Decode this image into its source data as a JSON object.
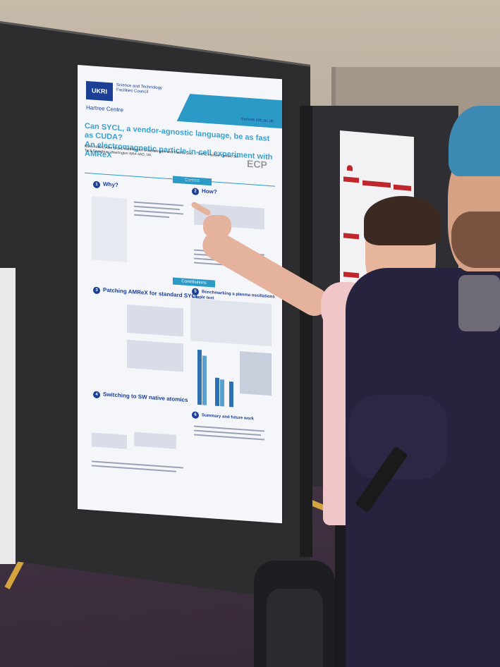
{
  "scene": {
    "description_colors": {
      "poster_accent": "#2b9ac7",
      "poster_navy": "#1b3f95",
      "board": "#2d2d30",
      "carpet": "#3e3040",
      "carpet_stripe": "#d4a43e",
      "shirt_pink": "#f1c6c8",
      "cap_blue": "#3c8ab3"
    }
  },
  "poster": {
    "logo": "UKRI",
    "org_line": "Science and Technology Facilities Council",
    "centre": "Hartree Centre",
    "title_1": "Can SYCL, a vendor-agnostic language, be as fast as CUDA?",
    "title_2": "An electromagnetic particle-in-cell experiment with AMReX",
    "authors": "Nuno Nobre, Alex Grant, Karthikeyan Chockalingam and Xiaohu Guo — STFC Hartree Centre, Sci-Tech Daresbury, Warrington WA4 4AD, UK",
    "url": "hartree.stfc.ac.uk",
    "ecp": "ECP",
    "context_bar": "Context",
    "contributions_bar": "Contributions",
    "sections": [
      {
        "num": "1",
        "label": "Why?"
      },
      {
        "num": "2",
        "label": "How?"
      },
      {
        "num": "3",
        "label": "Patching AMReX for standard SYCL"
      },
      {
        "num": "5",
        "label": "Benchmarking a plasma oscillations simple test"
      },
      {
        "num": "4",
        "label": "Switching to SW native atomics"
      },
      {
        "num": "6",
        "label": "Summary and future work"
      }
    ]
  },
  "icons": {
    "ukri_logo": "ukri-logo-icon"
  }
}
